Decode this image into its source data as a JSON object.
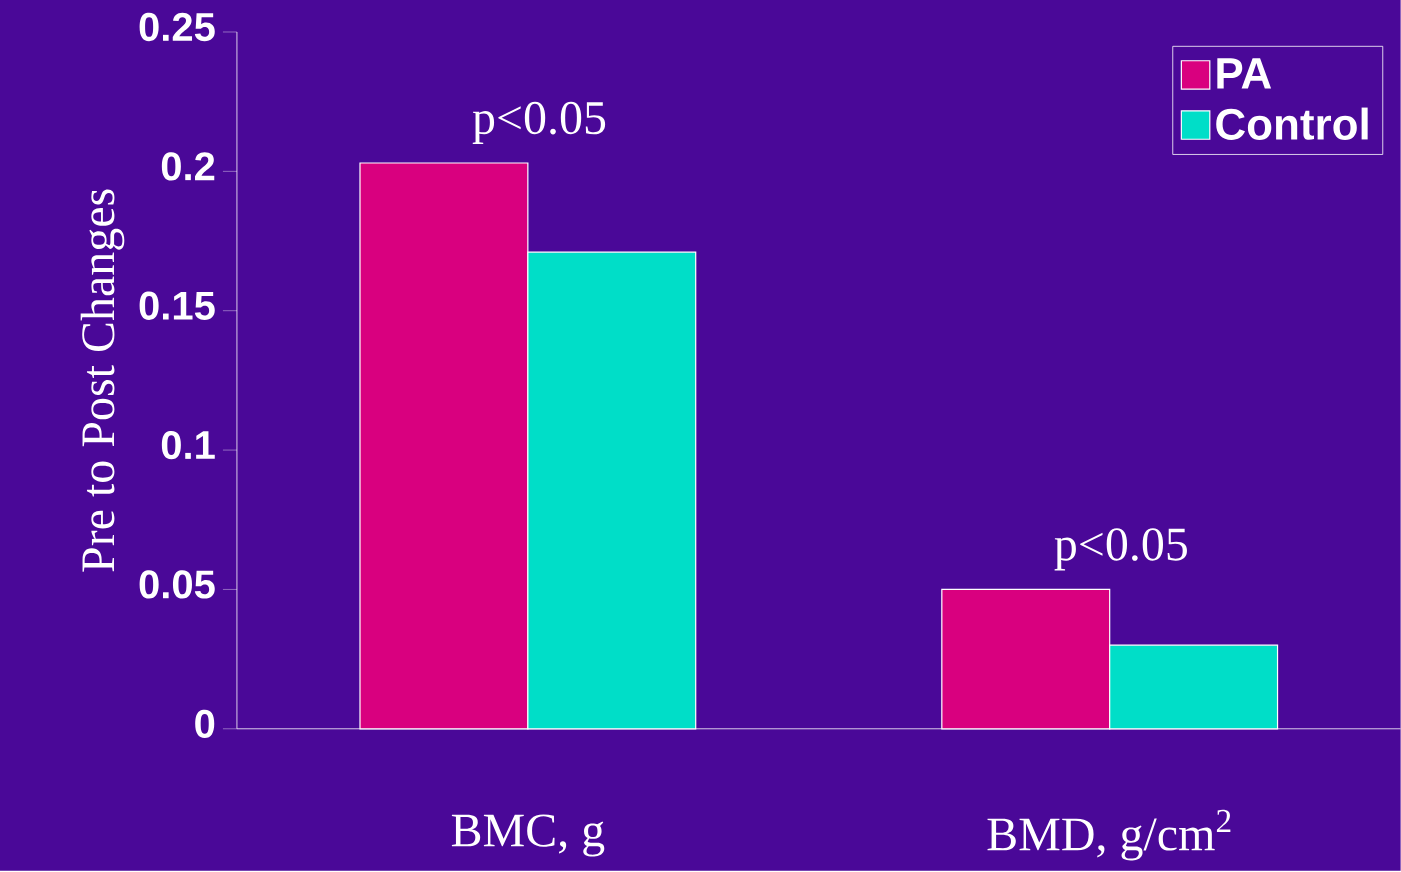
{
  "chart_data": {
    "type": "bar",
    "ylabel": "Pre to Post Changes",
    "categories": [
      "BMC, g",
      "BMD, g/cm$^{2}$"
    ],
    "series": [
      {
        "name": "PA",
        "color": "#d9007f",
        "values": [
          0.203,
          0.05
        ]
      },
      {
        "name": "Control",
        "color": "#00dec8",
        "values": [
          0.171,
          0.03
        ]
      }
    ],
    "ylim": [
      0,
      0.25
    ],
    "yticks": [
      0,
      0.05,
      0.1,
      0.15,
      0.2,
      0.25
    ],
    "legend": "top right",
    "annotations": [
      {
        "text": "p<0.05",
        "x": "BMC, g",
        "y": 0.203
      },
      {
        "text": "p<0.05",
        "x": "BMD, g/cm$^{2}$",
        "y": 0.05
      }
    ]
  }
}
